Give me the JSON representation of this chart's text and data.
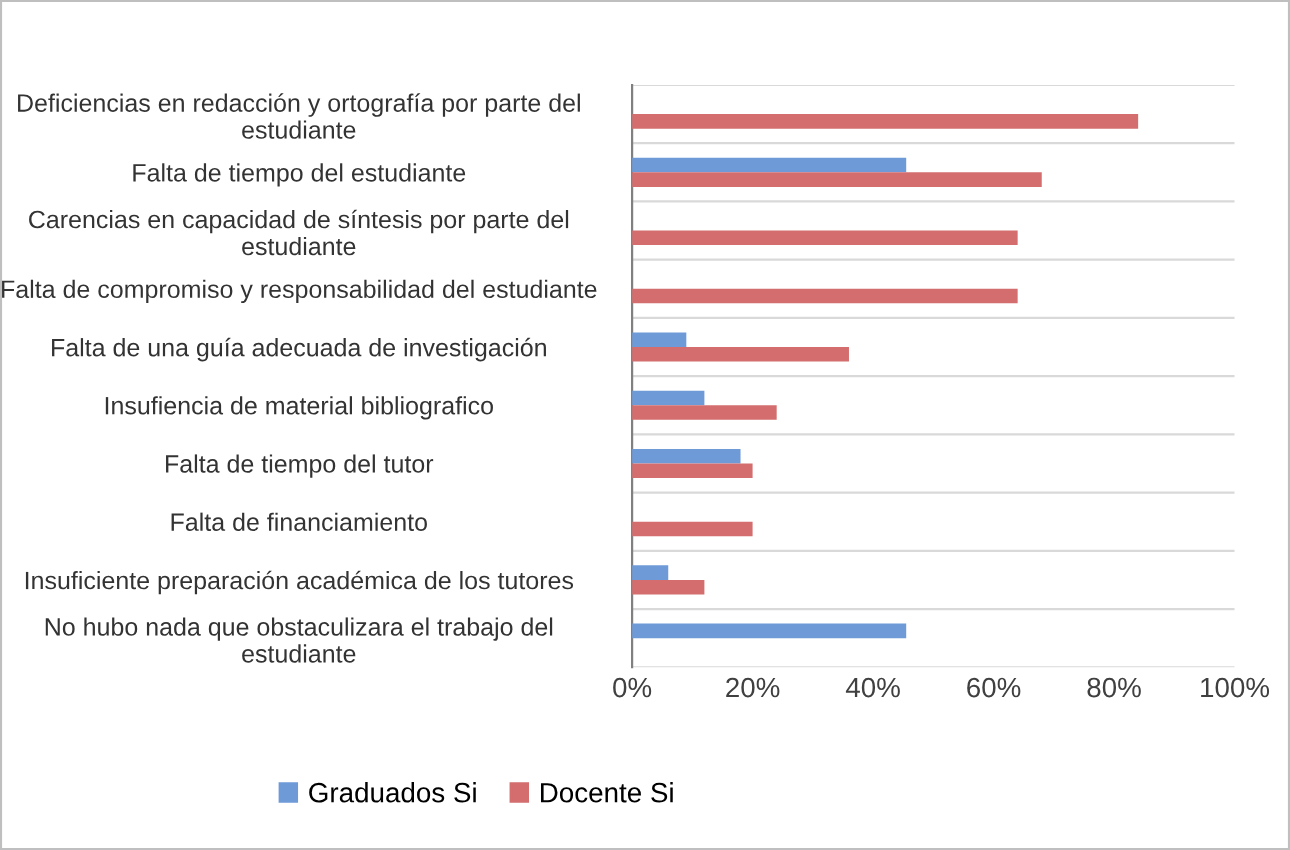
{
  "chart_data": {
    "type": "bar",
    "orientation": "horizontal",
    "categories": [
      "Deficiencias en redacción y ortografía por parte del\nestudiante",
      "Falta de tiempo del estudiante",
      "Carencias en capacidad de síntesis por parte del\nestudiante",
      "Falta de compromiso y responsabilidad del estudiante",
      "Falta de una guía adecuada de investigación",
      "Insufiencia de material bibliografico",
      "Falta de tiempo del tutor",
      "Falta de financiamiento",
      "Insuficiente preparación académica de los tutores",
      "No hubo nada que obstaculizara el trabajo del\nestudiante"
    ],
    "series": [
      {
        "name": "Graduados Si",
        "color": "#6f9ad8",
        "values": [
          null,
          45.5,
          null,
          null,
          9,
          12,
          18,
          null,
          6,
          45.5
        ]
      },
      {
        "name": "Docente Si",
        "color": "#d46e6e",
        "values": [
          84,
          68,
          64,
          64,
          36,
          24,
          20,
          20,
          12,
          null
        ]
      }
    ],
    "xlim": [
      0,
      100
    ],
    "xticks": [
      {
        "value": 0,
        "label": "0%"
      },
      {
        "value": 20,
        "label": "20%"
      },
      {
        "value": 40,
        "label": "40%"
      },
      {
        "value": 60,
        "label": "60%"
      },
      {
        "value": 80,
        "label": "80%"
      },
      {
        "value": 100,
        "label": "100%"
      }
    ],
    "grid": "y",
    "legend": "bottom"
  }
}
